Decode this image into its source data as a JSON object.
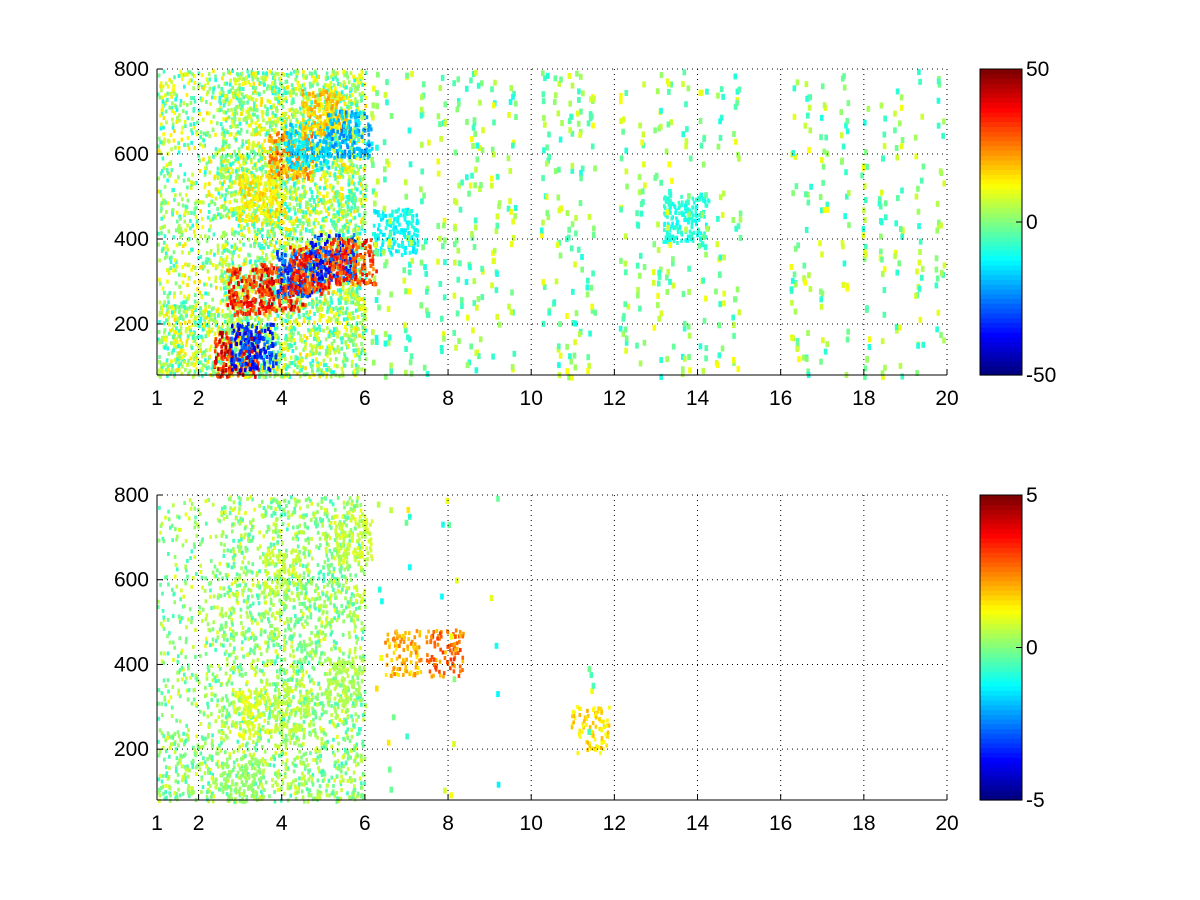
{
  "chart_data": [
    {
      "type": "heatmap",
      "title": "",
      "xlabel": "",
      "ylabel": "",
      "xlim": [
        1,
        20
      ],
      "ylim": [
        80,
        800
      ],
      "x_ticks": [
        1,
        2,
        4,
        6,
        8,
        10,
        12,
        14,
        16,
        18,
        20
      ],
      "y_ticks": [
        200,
        400,
        600,
        800
      ],
      "grid": true,
      "colormap": "jet",
      "clim": [
        -50,
        50
      ],
      "colorbar_ticks": [
        -50,
        0,
        50
      ],
      "colorbar_tick_labels": [
        "-50",
        "0",
        "50"
      ],
      "features": [
        {
          "x": 2.9,
          "y": 130,
          "value": 45
        },
        {
          "x": 3.3,
          "y": 150,
          "value": -40
        },
        {
          "x": 3.2,
          "y": 280,
          "value": 42
        },
        {
          "x": 4.0,
          "y": 290,
          "value": 45
        },
        {
          "x": 4.4,
          "y": 320,
          "value": -35
        },
        {
          "x": 4.7,
          "y": 330,
          "value": 40
        },
        {
          "x": 5.2,
          "y": 360,
          "value": -40
        },
        {
          "x": 5.7,
          "y": 350,
          "value": 40
        },
        {
          "x": 4.2,
          "y": 600,
          "value": 28
        },
        {
          "x": 4.6,
          "y": 620,
          "value": -20
        },
        {
          "x": 5.0,
          "y": 700,
          "value": 22
        },
        {
          "x": 5.6,
          "y": 650,
          "value": -25
        },
        {
          "x": 3.5,
          "y": 500,
          "value": 18
        },
        {
          "x": 6.7,
          "y": 420,
          "value": -15
        },
        {
          "x": 13.7,
          "y": 450,
          "value": -12
        }
      ]
    },
    {
      "type": "heatmap",
      "title": "",
      "xlabel": "",
      "ylabel": "",
      "xlim": [
        1,
        20
      ],
      "ylim": [
        80,
        800
      ],
      "x_ticks": [
        1,
        2,
        4,
        6,
        8,
        10,
        12,
        14,
        16,
        18,
        20
      ],
      "y_ticks": [
        200,
        400,
        600,
        800
      ],
      "grid": true,
      "colormap": "jet",
      "clim": [
        -5,
        5
      ],
      "colorbar_ticks": [
        -5,
        0,
        5
      ],
      "colorbar_tick_labels": [
        "-5",
        "0",
        "5"
      ],
      "features": [
        {
          "x": 3.0,
          "y": 130,
          "value": 0.3
        },
        {
          "x": 3.2,
          "y": 290,
          "value": 1.2
        },
        {
          "x": 4.2,
          "y": 300,
          "value": 0.8
        },
        {
          "x": 5.5,
          "y": 360,
          "value": 0.6
        },
        {
          "x": 4.0,
          "y": 620,
          "value": 0.9
        },
        {
          "x": 5.7,
          "y": 700,
          "value": 1.0
        },
        {
          "x": 6.9,
          "y": 430,
          "value": 2.5
        },
        {
          "x": 7.9,
          "y": 430,
          "value": 3.2
        },
        {
          "x": 11.4,
          "y": 250,
          "value": 2.0
        }
      ]
    }
  ]
}
